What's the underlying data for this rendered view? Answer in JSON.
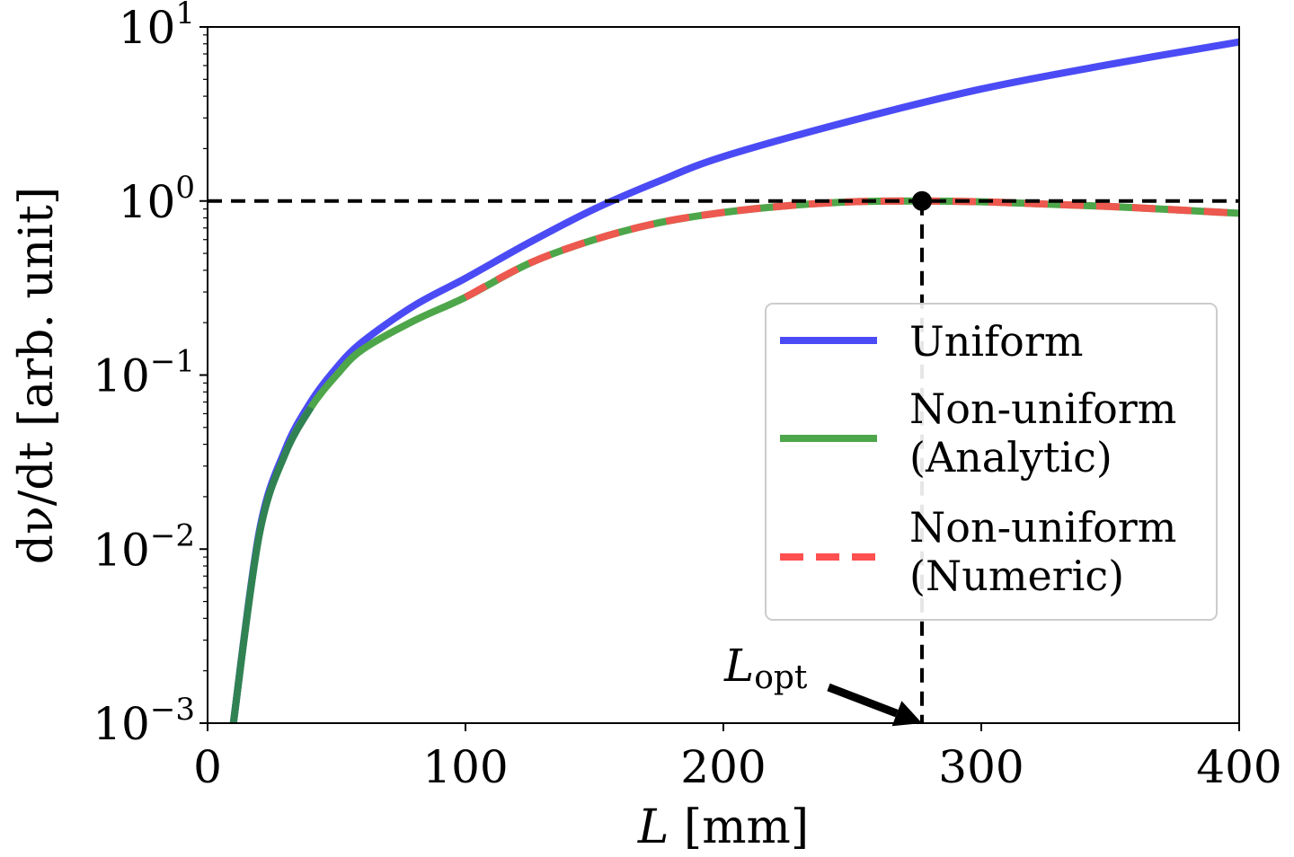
{
  "chart_data": {
    "type": "line",
    "xlabel": "L [mm]",
    "ylabel": "dν/dt [arb. unit]",
    "xscale": "linear",
    "yscale": "log",
    "xlim": [
      0,
      400
    ],
    "ylim": [
      0.001,
      10
    ],
    "x_ticks": [
      0,
      100,
      200,
      300,
      400
    ],
    "x_tick_labels": [
      "0",
      "100",
      "200",
      "300",
      "400"
    ],
    "y_ticks": [
      0.001,
      0.01,
      0.1,
      1,
      10
    ],
    "y_tick_labels": [
      {
        "base": "10",
        "exp": "−3"
      },
      {
        "base": "10",
        "exp": "−2"
      },
      {
        "base": "10",
        "exp": "−1"
      },
      {
        "base": "10",
        "exp": "0"
      },
      {
        "base": "10",
        "exp": "1"
      }
    ],
    "series": [
      {
        "name": "Uniform",
        "color": "#4b4bf5",
        "style": "solid",
        "x": [
          10,
          20,
          30,
          40,
          50,
          60,
          80,
          100,
          125,
          150,
          175,
          200,
          250,
          300,
          350,
          400
        ],
        "y": [
          0.001,
          0.0125,
          0.037,
          0.07,
          0.11,
          0.155,
          0.25,
          0.36,
          0.58,
          0.9,
          1.3,
          1.8,
          2.9,
          4.4,
          6.1,
          8.2
        ]
      },
      {
        "name": "Non-uniform\n(Analytic)",
        "legend_lines": [
          "Non-uniform",
          "(Analytic)"
        ],
        "color": "#4ea64a",
        "style": "solid",
        "x": [
          10,
          20,
          30,
          40,
          50,
          60,
          80,
          100,
          125,
          150,
          175,
          200,
          225,
          250,
          275,
          300,
          325,
          350,
          375,
          400
        ],
        "y": [
          0.001,
          0.012,
          0.035,
          0.065,
          0.1,
          0.14,
          0.205,
          0.28,
          0.44,
          0.6,
          0.75,
          0.86,
          0.94,
          0.99,
          1.0,
          0.99,
          0.96,
          0.93,
          0.89,
          0.85
        ]
      },
      {
        "name": "Non-uniform\n(Numeric)",
        "legend_lines": [
          "Non-uniform",
          "(Numeric)"
        ],
        "color": "#ff5050",
        "style": "dashed",
        "x": [
          100,
          125,
          150,
          175,
          200,
          225,
          250,
          275,
          300,
          325,
          350,
          375,
          400
        ],
        "y": [
          0.28,
          0.44,
          0.6,
          0.75,
          0.86,
          0.94,
          0.99,
          1.0,
          0.99,
          0.96,
          0.93,
          0.89,
          0.85
        ]
      }
    ],
    "reference_lines": {
      "horizontal_y": 1,
      "vertical_x": 277
    },
    "optimum_point": {
      "x": 277,
      "y": 1.0
    },
    "annotation": {
      "text_main": "L",
      "text_sub": "opt",
      "arrow_to_x": 277,
      "arrow_to_y": 0.001
    },
    "legend_position": "center-right"
  }
}
